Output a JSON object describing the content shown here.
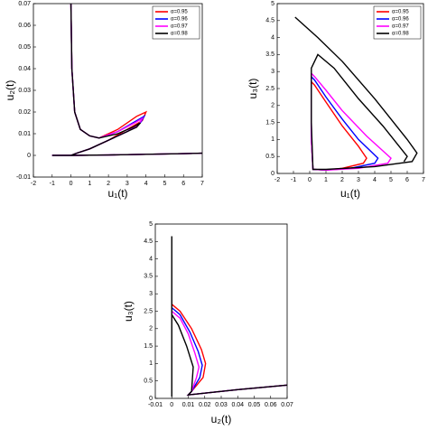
{
  "chart_data": [
    {
      "type": "line",
      "xlabel": "u₁(t)",
      "ylabel": "u₂(t)",
      "xlim": [
        -2,
        7
      ],
      "ylim": [
        -0.01,
        0.07
      ],
      "xticks": [
        -2,
        -1,
        0,
        1,
        2,
        3,
        4,
        5,
        6,
        7
      ],
      "yticks": [
        -0.01,
        0,
        0.01,
        0.02,
        0.03,
        0.04,
        0.05,
        0.06,
        0.07
      ],
      "legend": "upper right",
      "series": [
        {
          "name": "α=0.95",
          "color": "#ff0000",
          "x": [
            0,
            0.05,
            0.2,
            0.5,
            1,
            1.5,
            2.5,
            3.5,
            4,
            3.8,
            3,
            2,
            1,
            0.3,
            0,
            -1,
            0,
            2,
            4,
            6,
            7
          ],
          "y": [
            0.07,
            0.04,
            0.02,
            0.012,
            0.009,
            0.008,
            0.012,
            0.018,
            0.02,
            0.016,
            0.012,
            0.007,
            0.003,
            0.001,
            0,
            0,
            0,
            0.0002,
            0.0005,
            0.0008,
            0.001
          ]
        },
        {
          "name": "α=0.96",
          "color": "#0000ff",
          "x": [
            0,
            0.05,
            0.2,
            0.5,
            1,
            1.5,
            2.5,
            3.5,
            3.9,
            3.7,
            3,
            2,
            1,
            0.3,
            0,
            -1,
            0,
            2,
            4,
            6,
            7
          ],
          "y": [
            0.07,
            0.04,
            0.02,
            0.012,
            0.009,
            0.008,
            0.011,
            0.016,
            0.018,
            0.015,
            0.011,
            0.007,
            0.003,
            0.001,
            0,
            0,
            0,
            0.0002,
            0.0005,
            0.0008,
            0.001
          ]
        },
        {
          "name": "α=0.97",
          "color": "#ff00ff",
          "x": [
            0,
            0.05,
            0.2,
            0.5,
            1,
            1.5,
            2.5,
            3.4,
            3.8,
            3.6,
            3,
            2,
            1,
            0.3,
            0,
            -1,
            0,
            2,
            4,
            6,
            7
          ],
          "y": [
            0.07,
            0.04,
            0.02,
            0.012,
            0.009,
            0.008,
            0.011,
            0.015,
            0.017,
            0.014,
            0.011,
            0.007,
            0.003,
            0.001,
            0,
            0,
            0,
            0.0002,
            0.0005,
            0.0008,
            0.001
          ]
        },
        {
          "name": "α=0.98",
          "color": "#000000",
          "x": [
            0,
            0.05,
            0.2,
            0.5,
            1,
            1.5,
            2.5,
            3.3,
            3.7,
            3.5,
            3,
            2,
            1,
            0.3,
            0,
            -1,
            0,
            2,
            4,
            6,
            7
          ],
          "y": [
            0.07,
            0.04,
            0.02,
            0.012,
            0.009,
            0.008,
            0.01,
            0.013,
            0.015,
            0.013,
            0.011,
            0.007,
            0.003,
            0.001,
            0,
            0,
            0,
            0.0002,
            0.0005,
            0.0008,
            0.001
          ]
        }
      ]
    },
    {
      "type": "line",
      "xlabel": "u₁(t)",
      "ylabel": "u₃(t)",
      "xlim": [
        -2,
        7
      ],
      "ylim": [
        0,
        5
      ],
      "xticks": [
        -2,
        -1,
        0,
        1,
        2,
        3,
        4,
        5,
        6,
        7
      ],
      "yticks": [
        0,
        0.5,
        1,
        1.5,
        2,
        2.5,
        3,
        3.5,
        4,
        4.5,
        5
      ],
      "legend": "upper right",
      "series": [
        {
          "name": "α=0.95",
          "color": "#ff0000",
          "x": [
            0.1,
            0.3,
            1,
            2,
            3,
            3.5,
            3.3,
            2,
            1,
            0.2,
            0.1,
            0.1
          ],
          "y": [
            2.7,
            2.6,
            2.1,
            1.4,
            0.8,
            0.45,
            0.3,
            0.15,
            0.1,
            0.12,
            1.0,
            2.7
          ]
        },
        {
          "name": "α=0.96",
          "color": "#0000ff",
          "x": [
            0.1,
            0.3,
            1,
            2,
            3,
            4.2,
            4,
            2.5,
            1,
            0.2,
            0.1,
            0.1
          ],
          "y": [
            2.85,
            2.75,
            2.25,
            1.6,
            1.0,
            0.45,
            0.3,
            0.15,
            0.1,
            0.12,
            1.0,
            2.85
          ]
        },
        {
          "name": "α=0.97",
          "color": "#ff00ff",
          "x": [
            0.1,
            0.3,
            1,
            2,
            3.5,
            5,
            4.8,
            3,
            1,
            0.2,
            0.1,
            0.1
          ],
          "y": [
            2.95,
            2.85,
            2.45,
            1.85,
            1.1,
            0.45,
            0.3,
            0.15,
            0.1,
            0.12,
            1.0,
            2.95
          ]
        },
        {
          "name": "α=0.98",
          "color": "#000000",
          "x": [
            -0.9,
            0.5,
            2,
            4,
            6,
            6.6,
            6.3,
            4,
            1,
            0.2,
            0.1,
            0.1,
            0.5,
            1.5,
            3,
            4.5,
            6,
            5.8
          ],
          "y": [
            4.6,
            4.0,
            3.3,
            2.2,
            1.0,
            0.6,
            0.35,
            0.2,
            0.12,
            0.12,
            1.5,
            3.1,
            3.5,
            3.1,
            2.2,
            1.4,
            0.5,
            0.35
          ]
        }
      ]
    },
    {
      "type": "line",
      "xlabel": "u₂(t)",
      "ylabel": "u₃(t)",
      "xlim": [
        -0.01,
        0.07
      ],
      "ylim": [
        0,
        5
      ],
      "xticks": [
        -0.01,
        0,
        0.01,
        0.02,
        0.03,
        0.04,
        0.05,
        0.06,
        0.07
      ],
      "yticks": [
        0,
        0.5,
        1,
        1.5,
        2,
        2.5,
        3,
        3.5,
        4,
        4.5,
        5
      ],
      "series": [
        {
          "color": "#ff0000",
          "x": [
            0,
            0.005,
            0.012,
            0.018,
            0.0205,
            0.019,
            0.012,
            0.01,
            0.02,
            0.04,
            0.07
          ],
          "y": [
            2.7,
            2.5,
            2.0,
            1.4,
            1.0,
            0.6,
            0.2,
            0.1,
            0.15,
            0.25,
            0.38
          ]
        },
        {
          "color": "#0000ff",
          "x": [
            0,
            0.005,
            0.011,
            0.016,
            0.0185,
            0.017,
            0.012,
            0.01,
            0.02,
            0.04,
            0.07
          ],
          "y": [
            2.6,
            2.4,
            1.9,
            1.35,
            0.95,
            0.6,
            0.2,
            0.1,
            0.15,
            0.25,
            0.38
          ]
        },
        {
          "color": "#ff00ff",
          "x": [
            0,
            0.005,
            0.01,
            0.014,
            0.0165,
            0.015,
            0.012,
            0.01,
            0.02,
            0.04,
            0.07
          ],
          "y": [
            2.5,
            2.3,
            1.85,
            1.3,
            0.9,
            0.6,
            0.2,
            0.1,
            0.15,
            0.25,
            0.38
          ]
        },
        {
          "color": "#000000",
          "x": [
            0,
            0,
            0,
            0.004,
            0.009,
            0.013,
            0.012,
            0.01,
            0.02,
            0.04,
            0.07
          ],
          "y": [
            4.65,
            0.05,
            2.4,
            2.1,
            1.5,
            0.9,
            0.2,
            0.1,
            0.15,
            0.25,
            0.38
          ]
        }
      ]
    }
  ]
}
